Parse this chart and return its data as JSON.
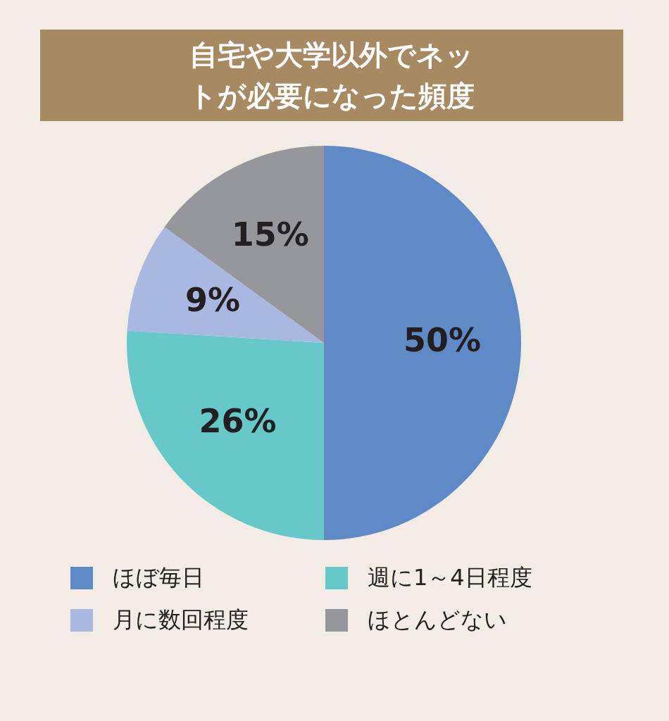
{
  "chart_data": {
    "type": "pie",
    "title": "自宅や大学以外でネットが必要になった頻度",
    "categories": [
      "ほぼ毎日",
      "週に1～4日程度",
      "月に数回程度",
      "ほとんどない"
    ],
    "values": [
      50,
      26,
      9,
      15
    ],
    "value_labels": [
      "50%",
      "26%",
      "9%",
      "15%"
    ],
    "colors": [
      "#6089c8",
      "#66c8c9",
      "#a8b8e0",
      "#96979c"
    ],
    "legend": "bottom"
  }
}
